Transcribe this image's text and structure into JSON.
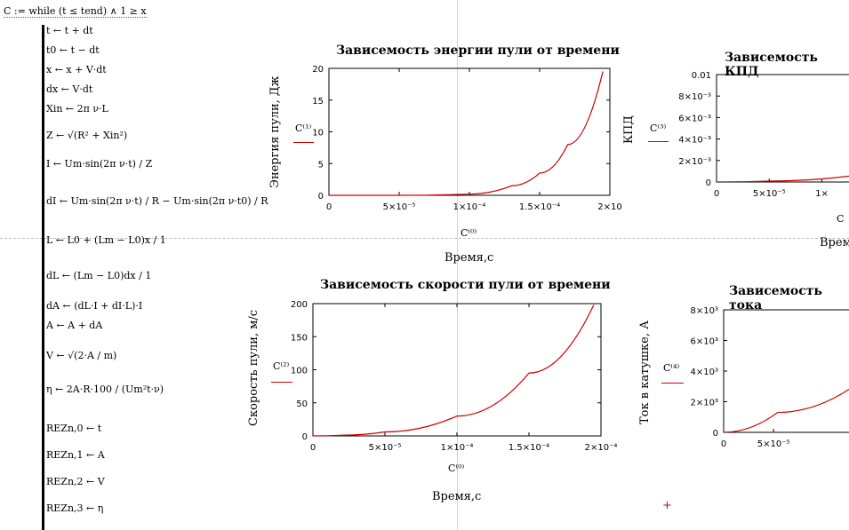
{
  "program": {
    "header": "C := while (t ≤ tend) ∧ 1 ≥ x",
    "lines": [
      "t ← t + dt",
      "t0 ← t − dt",
      "x ← x + V·dt",
      "dx ← V·dt",
      "Xin ← 2π ν·L",
      "Z ← √(R² + Xin²)",
      "I ← Um·sin(2π ν·t) / Z",
      "dI ← Um·sin(2π ν·t) / R − Um·sin(2π ν·t0) / R",
      "L ← L0 + (Lm − L0)x / 1",
      "dL ← (Lm − L0)dx / 1",
      "dA ← (dL·I + dI·L)·I",
      "A ← A + dA",
      "V ← √(2·A / m)",
      "η ← 2A·R·100 / (Um²t·ν)",
      "REZn,0 ← t",
      "REZn,1 ← A",
      "REZn,2 ← V",
      "REZn,3 ← η"
    ]
  },
  "graphs": [
    {
      "title": "Зависемость энергии пули от времени",
      "ylabel": "Энергия пули, Дж",
      "xlabel": "Время,с",
      "trace": "C⁽¹⁾",
      "xtrace": "C⁽⁰⁾",
      "xticks": [
        "0",
        "5×10⁻⁵",
        "1×10⁻⁴",
        "1.5×10⁻⁴",
        "2×10"
      ],
      "yticks": [
        "0",
        "5",
        "10",
        "15",
        "20"
      ]
    },
    {
      "title": "Зависемость КПД",
      "ylabel": "КПД",
      "xlabel": "Врем",
      "trace": "C⁽³⁾",
      "xtrace": "C",
      "xticks": [
        "0",
        "5×10⁻⁵",
        "1×"
      ],
      "yticks": [
        "0",
        "2×10⁻³",
        "4×10⁻³",
        "6×10⁻³",
        "8×10⁻³",
        "0.01"
      ]
    },
    {
      "title": "Зависемость скорости пули от времени",
      "ylabel": "Скорость пули, м/с",
      "xlabel": "Время,с",
      "trace": "C⁽²⁾",
      "xtrace": "C⁽⁰⁾",
      "xticks": [
        "0",
        "5×10⁻⁵",
        "1×10⁻⁴",
        "1.5×10⁻⁴",
        "2×10⁻⁴"
      ],
      "yticks": [
        "0",
        "50",
        "100",
        "150",
        "200"
      ]
    },
    {
      "title": "Зависемость тока",
      "ylabel": "Ток в катушке, А",
      "xlabel": "",
      "trace": "C⁽⁴⁾",
      "xtrace": "",
      "xticks": [
        "0",
        "5×10⁻⁵"
      ],
      "yticks": [
        "0",
        "2×10³",
        "4×10³",
        "6×10³",
        "8×10³"
      ]
    }
  ],
  "chart_data": [
    {
      "type": "line",
      "title": "Зависемость энергии пули от времени",
      "xlabel": "Время,с",
      "ylabel": "Энергия пули, Дж",
      "xlim": [
        0,
        0.0002
      ],
      "ylim": [
        0,
        20
      ],
      "series": [
        {
          "name": "C⁽¹⁾",
          "x": [
            0,
            5e-05,
            0.0001,
            0.00013,
            0.00015,
            0.00017,
            0.000195
          ],
          "y": [
            0,
            0.0,
            0.2,
            1.5,
            3.5,
            8.0,
            19.5
          ]
        }
      ]
    },
    {
      "type": "line",
      "title": "Зависемость КПД",
      "ylabel": "КПД",
      "ylim": [
        0,
        0.01
      ],
      "series": [
        {
          "name": "C⁽³⁾",
          "x": [
            0,
            5e-05,
            0.00012
          ],
          "y": [
            0,
            0.0001,
            0.0006
          ]
        }
      ]
    },
    {
      "type": "line",
      "title": "Зависемость скорости пули от времени",
      "xlabel": "Время,с",
      "ylabel": "Скорость пули, м/с",
      "xlim": [
        0,
        0.0002
      ],
      "ylim": [
        0,
        200
      ],
      "series": [
        {
          "name": "C⁽²⁾",
          "x": [
            0,
            2e-05,
            5e-05,
            0.0001,
            0.00015,
            0.000195
          ],
          "y": [
            0,
            1,
            6,
            30,
            95,
            198
          ]
        }
      ]
    },
    {
      "type": "line",
      "title": "Зависемость тока",
      "ylabel": "Ток в катушке, А",
      "ylim": [
        0,
        8000
      ],
      "series": [
        {
          "name": "C⁽⁴⁾",
          "x": [
            0,
            5e-05,
            0.00012
          ],
          "y": [
            0,
            1300,
            3000
          ]
        }
      ]
    }
  ],
  "colors": {
    "trace": "#d00000",
    "axis": "#000000"
  }
}
